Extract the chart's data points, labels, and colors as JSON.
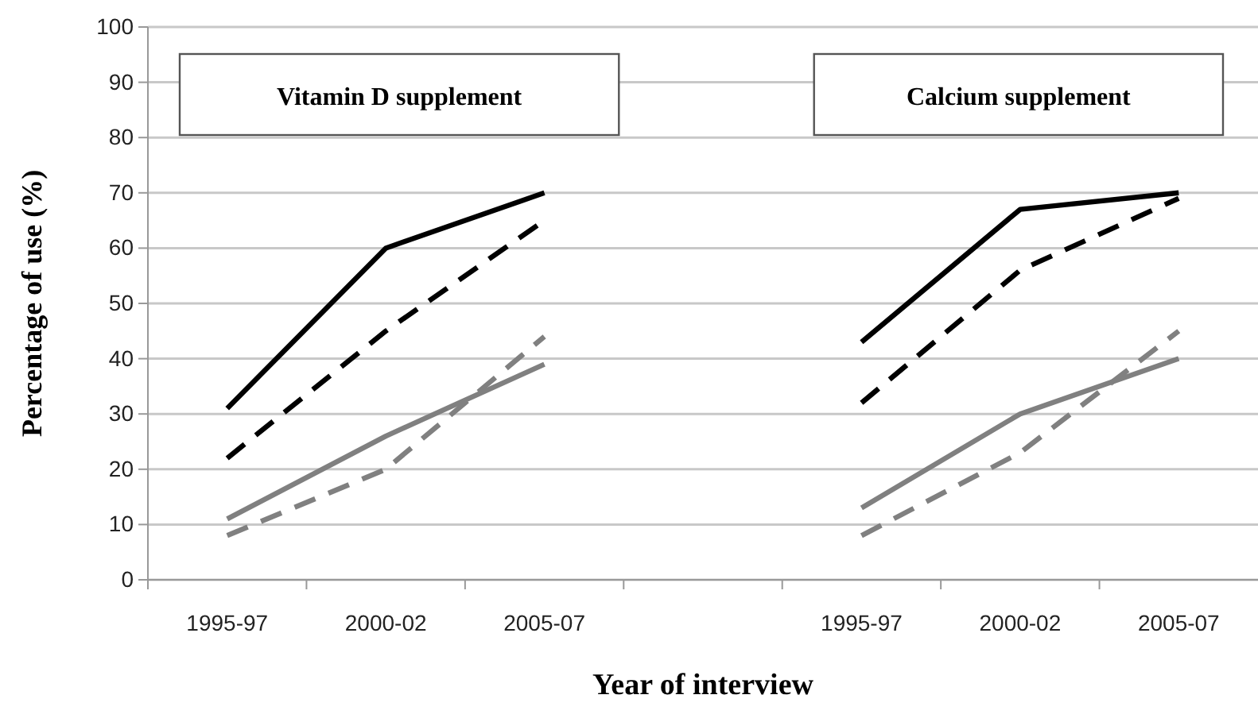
{
  "chart_data": {
    "type": "line",
    "xlabel": "Year of interview",
    "ylabel": "Percentage of use (%)",
    "annotations": [
      "Vitamin D supplement",
      "Calcium supplement"
    ],
    "categories": [
      "1995-97",
      "2000-02",
      "2005-07",
      null,
      "1995-97",
      "2000-02",
      "2005-07"
    ],
    "series": [
      {
        "color": "#000000",
        "line_style": "solid",
        "values": [
          31,
          60,
          70,
          null,
          43,
          67,
          70
        ]
      },
      {
        "color": "#000000",
        "line_style": "dashed",
        "values": [
          22,
          45,
          65,
          null,
          32,
          56,
          69
        ]
      },
      {
        "color": "#808080",
        "line_style": "solid",
        "values": [
          11,
          26,
          39,
          null,
          13,
          30,
          40
        ]
      },
      {
        "color": "#808080",
        "line_style": "dashed",
        "values": [
          8,
          20,
          44,
          null,
          8,
          23,
          45
        ]
      }
    ],
    "ylim": [
      0,
      100
    ],
    "yticks": [
      0,
      10,
      20,
      30,
      40,
      50,
      60,
      70,
      80,
      90,
      100
    ],
    "grid": "y",
    "marker": "none"
  }
}
